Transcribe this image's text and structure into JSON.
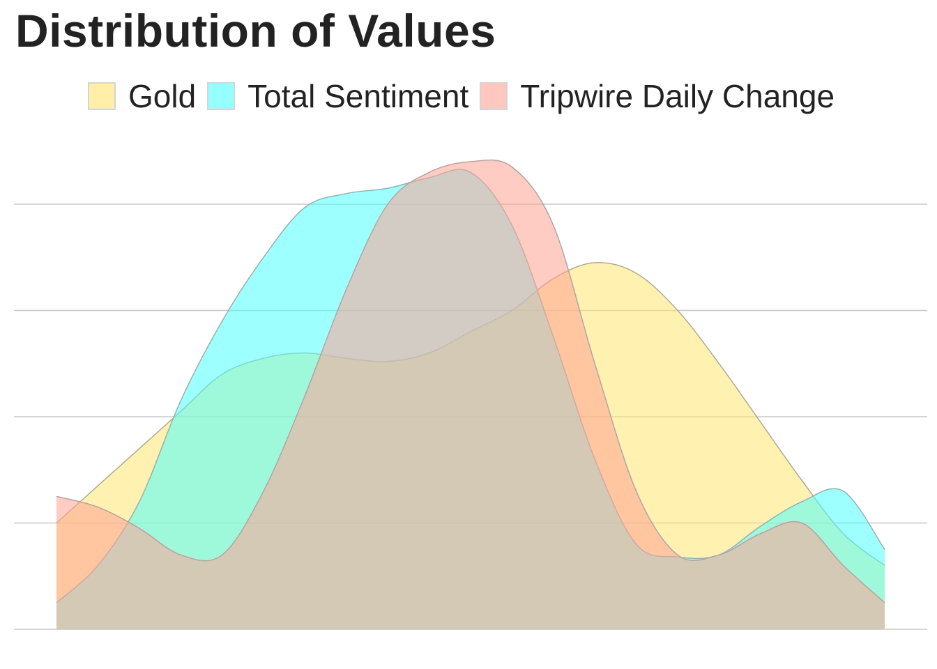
{
  "chart_data": {
    "type": "area",
    "title": "Distribution of Values",
    "xlabel": "",
    "ylabel": "",
    "legend_position": "top",
    "grid": "horizontal",
    "ylim": [
      0,
      4
    ],
    "y_gridlines": [
      0,
      1,
      2,
      3,
      4
    ],
    "x": [
      0.0,
      0.05,
      0.1,
      0.15,
      0.2,
      0.25,
      0.3,
      0.35,
      0.4,
      0.45,
      0.5,
      0.55,
      0.6,
      0.65,
      0.7,
      0.75,
      0.8,
      0.85,
      0.9,
      0.95,
      1.0
    ],
    "series": [
      {
        "name": "Gold",
        "color": "#FFE66D",
        "values": [
          1.0,
          1.35,
          1.7,
          2.05,
          2.4,
          2.55,
          2.6,
          2.55,
          2.52,
          2.6,
          2.8,
          3.0,
          3.3,
          3.45,
          3.35,
          3.0,
          2.5,
          1.95,
          1.4,
          0.9,
          0.6
        ]
      },
      {
        "name": "Total Sentiment",
        "color": "#4FFFFF",
        "values": [
          0.25,
          0.6,
          1.2,
          2.15,
          2.9,
          3.5,
          3.97,
          4.1,
          4.15,
          4.25,
          4.3,
          3.8,
          2.75,
          1.6,
          0.8,
          0.68,
          0.7,
          0.97,
          1.2,
          1.3,
          0.75
        ]
      },
      {
        "name": "Tripwire Daily Change",
        "color": "#FFA394",
        "values": [
          1.25,
          1.15,
          0.95,
          0.7,
          0.7,
          1.3,
          2.2,
          3.2,
          4.0,
          4.3,
          4.4,
          4.35,
          3.8,
          2.5,
          1.3,
          0.7,
          0.7,
          0.9,
          1.0,
          0.6,
          0.25
        ]
      }
    ]
  }
}
